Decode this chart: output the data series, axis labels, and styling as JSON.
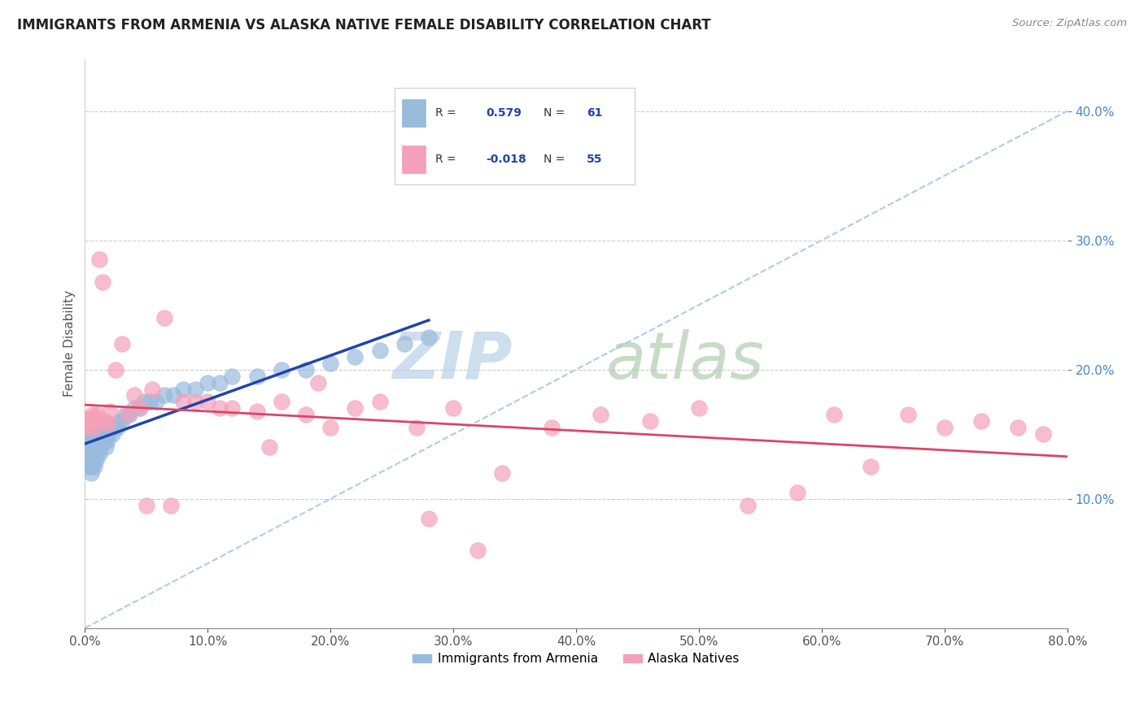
{
  "title": "IMMIGRANTS FROM ARMENIA VS ALASKA NATIVE FEMALE DISABILITY CORRELATION CHART",
  "source": "Source: ZipAtlas.com",
  "ylabel": "Female Disability",
  "xlim": [
    0.0,
    0.8
  ],
  "ylim": [
    0.0,
    0.44
  ],
  "xticks": [
    0.0,
    0.1,
    0.2,
    0.3,
    0.4,
    0.5,
    0.6,
    0.7,
    0.8
  ],
  "yticks": [
    0.1,
    0.2,
    0.3,
    0.4
  ],
  "grid_color": "#cccccc",
  "blue_R": 0.579,
  "blue_N": 61,
  "pink_R": -0.018,
  "pink_N": 55,
  "blue_color": "#99bbdd",
  "pink_color": "#f4a0b8",
  "blue_line_color": "#2244aa",
  "pink_line_color": "#dd4466",
  "dash_line_color": "#aaccee",
  "legend_label_blue": "Immigrants from Armenia",
  "legend_label_pink": "Alaska Natives",
  "blue_scatter_x": [
    0.001,
    0.001,
    0.002,
    0.002,
    0.002,
    0.003,
    0.003,
    0.003,
    0.004,
    0.004,
    0.004,
    0.005,
    0.005,
    0.005,
    0.006,
    0.006,
    0.007,
    0.007,
    0.008,
    0.008,
    0.009,
    0.009,
    0.01,
    0.01,
    0.011,
    0.012,
    0.013,
    0.014,
    0.015,
    0.016,
    0.017,
    0.018,
    0.019,
    0.02,
    0.022,
    0.024,
    0.026,
    0.028,
    0.03,
    0.033,
    0.036,
    0.04,
    0.044,
    0.048,
    0.053,
    0.058,
    0.065,
    0.072,
    0.08,
    0.09,
    0.1,
    0.11,
    0.12,
    0.14,
    0.16,
    0.18,
    0.2,
    0.22,
    0.24,
    0.26,
    0.28
  ],
  "blue_scatter_y": [
    0.13,
    0.145,
    0.135,
    0.15,
    0.16,
    0.125,
    0.14,
    0.155,
    0.13,
    0.145,
    0.155,
    0.12,
    0.135,
    0.15,
    0.125,
    0.14,
    0.13,
    0.145,
    0.125,
    0.14,
    0.13,
    0.145,
    0.135,
    0.15,
    0.14,
    0.135,
    0.14,
    0.145,
    0.15,
    0.145,
    0.14,
    0.145,
    0.15,
    0.155,
    0.15,
    0.155,
    0.155,
    0.16,
    0.16,
    0.165,
    0.165,
    0.17,
    0.17,
    0.175,
    0.175,
    0.175,
    0.18,
    0.18,
    0.185,
    0.185,
    0.19,
    0.19,
    0.195,
    0.195,
    0.2,
    0.2,
    0.205,
    0.21,
    0.215,
    0.22,
    0.225
  ],
  "pink_scatter_x": [
    0.001,
    0.002,
    0.003,
    0.004,
    0.005,
    0.006,
    0.007,
    0.008,
    0.009,
    0.01,
    0.012,
    0.014,
    0.016,
    0.018,
    0.02,
    0.025,
    0.03,
    0.035,
    0.04,
    0.045,
    0.055,
    0.065,
    0.08,
    0.09,
    0.1,
    0.12,
    0.14,
    0.16,
    0.18,
    0.2,
    0.22,
    0.24,
    0.27,
    0.3,
    0.34,
    0.38,
    0.42,
    0.46,
    0.5,
    0.54,
    0.58,
    0.61,
    0.64,
    0.67,
    0.7,
    0.73,
    0.76,
    0.78,
    0.05,
    0.07,
    0.11,
    0.15,
    0.19,
    0.28,
    0.32
  ],
  "pink_scatter_y": [
    0.155,
    0.16,
    0.158,
    0.162,
    0.158,
    0.165,
    0.16,
    0.155,
    0.162,
    0.165,
    0.285,
    0.268,
    0.16,
    0.158,
    0.168,
    0.2,
    0.22,
    0.165,
    0.18,
    0.17,
    0.185,
    0.24,
    0.175,
    0.175,
    0.175,
    0.17,
    0.168,
    0.175,
    0.165,
    0.155,
    0.17,
    0.175,
    0.155,
    0.17,
    0.12,
    0.155,
    0.165,
    0.16,
    0.17,
    0.095,
    0.105,
    0.165,
    0.125,
    0.165,
    0.155,
    0.16,
    0.155,
    0.15,
    0.095,
    0.095,
    0.17,
    0.14,
    0.19,
    0.085,
    0.06
  ]
}
